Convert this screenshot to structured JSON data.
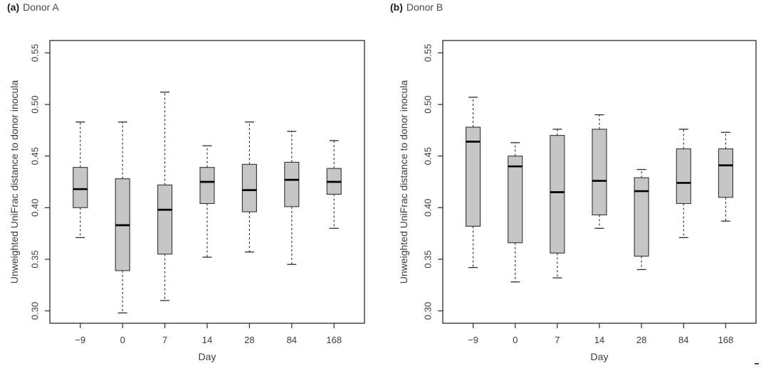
{
  "figure": {
    "background": "#ffffff",
    "box_fill": "#c6c6c6",
    "box_stroke": "#333333",
    "median_color": "#000000",
    "axis_color": "#2b2b2b",
    "text_color": "#3c3c3c"
  },
  "chart_data": [
    {
      "type": "boxplot",
      "panel_tag": "(a)",
      "title": "Donor A",
      "xlabel": "Day",
      "ylabel": "Unweighted UniFrac distance to donor inocula",
      "categories": [
        "−9",
        "0",
        "7",
        "14",
        "28",
        "84",
        "168"
      ],
      "ylim": [
        0.288,
        0.562
      ],
      "ytick_labels": [
        "0.30",
        "0.35",
        "0.40",
        "0.45",
        "0.50",
        "0.55"
      ],
      "grid": false,
      "legend": "none",
      "boxes": [
        {
          "day": "−9",
          "whisker_low": 0.371,
          "q1": 0.4,
          "median": 0.418,
          "q3": 0.439,
          "whisker_high": 0.483
        },
        {
          "day": "0",
          "whisker_low": 0.298,
          "q1": 0.339,
          "median": 0.383,
          "q3": 0.428,
          "whisker_high": 0.483
        },
        {
          "day": "7",
          "whisker_low": 0.31,
          "q1": 0.355,
          "median": 0.398,
          "q3": 0.422,
          "whisker_high": 0.512
        },
        {
          "day": "14",
          "whisker_low": 0.352,
          "q1": 0.404,
          "median": 0.425,
          "q3": 0.439,
          "whisker_high": 0.46
        },
        {
          "day": "28",
          "whisker_low": 0.357,
          "q1": 0.396,
          "median": 0.417,
          "q3": 0.442,
          "whisker_high": 0.483
        },
        {
          "day": "84",
          "whisker_low": 0.345,
          "q1": 0.401,
          "median": 0.427,
          "q3": 0.444,
          "whisker_high": 0.474
        },
        {
          "day": "168",
          "whisker_low": 0.38,
          "q1": 0.413,
          "median": 0.425,
          "q3": 0.438,
          "whisker_high": 0.465
        }
      ]
    },
    {
      "type": "boxplot",
      "panel_tag": "(b)",
      "title": "Donor B",
      "xlabel": "Day",
      "ylabel": "Unweighted UniFrac distance to donor inocula",
      "categories": [
        "−9",
        "0",
        "7",
        "14",
        "28",
        "84",
        "168"
      ],
      "ylim": [
        0.288,
        0.562
      ],
      "ytick_labels": [
        "0.30",
        "0.35",
        "0.40",
        "0.45",
        "0.50",
        "0.55"
      ],
      "grid": false,
      "legend": "none",
      "boxes": [
        {
          "day": "−9",
          "whisker_low": 0.342,
          "q1": 0.382,
          "median": 0.464,
          "q3": 0.478,
          "whisker_high": 0.507
        },
        {
          "day": "0",
          "whisker_low": 0.328,
          "q1": 0.366,
          "median": 0.44,
          "q3": 0.45,
          "whisker_high": 0.463
        },
        {
          "day": "7",
          "whisker_low": 0.332,
          "q1": 0.356,
          "median": 0.415,
          "q3": 0.47,
          "whisker_high": 0.476
        },
        {
          "day": "14",
          "whisker_low": 0.38,
          "q1": 0.393,
          "median": 0.426,
          "q3": 0.476,
          "whisker_high": 0.49
        },
        {
          "day": "28",
          "whisker_low": 0.34,
          "q1": 0.353,
          "median": 0.416,
          "q3": 0.429,
          "whisker_high": 0.437
        },
        {
          "day": "84",
          "whisker_low": 0.371,
          "q1": 0.404,
          "median": 0.424,
          "q3": 0.457,
          "whisker_high": 0.476
        },
        {
          "day": "168",
          "whisker_low": 0.387,
          "q1": 0.41,
          "median": 0.441,
          "q3": 0.457,
          "whisker_high": 0.473
        }
      ]
    }
  ]
}
